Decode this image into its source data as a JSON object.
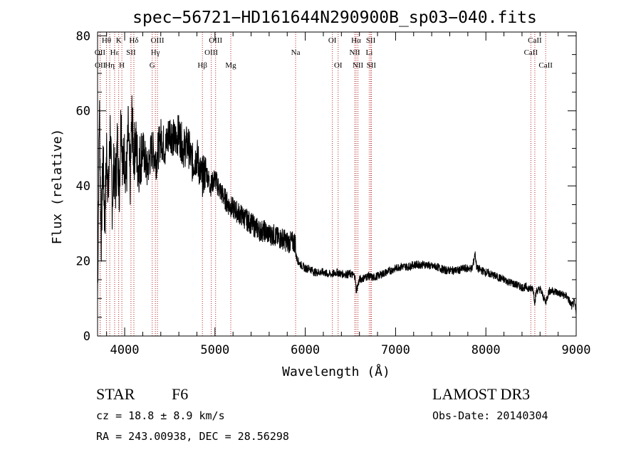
{
  "chart_data": {
    "type": "line",
    "title": "spec−56721−HD161644N290900B_sp03−040.fits",
    "xlabel": "Wavelength (Å)",
    "ylabel": "Flux (relative)",
    "xlim": [
      3700,
      9000
    ],
    "ylim": [
      0,
      81
    ],
    "x_ticks": [
      4000,
      5000,
      6000,
      7000,
      8000,
      9000
    ],
    "y_ticks": [
      0,
      20,
      40,
      60,
      80
    ],
    "grid": false,
    "series": [
      {
        "name": "flux",
        "color": "#000000",
        "x": [
          3700,
          3720,
          3740,
          3760,
          3780,
          3800,
          3820,
          3840,
          3860,
          3880,
          3900,
          3920,
          3940,
          3960,
          3980,
          4000,
          4020,
          4040,
          4060,
          4080,
          4100,
          4120,
          4150,
          4200,
          4250,
          4300,
          4350,
          4400,
          4450,
          4500,
          4550,
          4600,
          4650,
          4700,
          4750,
          4800,
          4850,
          4900,
          4950,
          5000,
          5050,
          5100,
          5150,
          5200,
          5250,
          5300,
          5350,
          5400,
          5450,
          5500,
          5550,
          5600,
          5650,
          5700,
          5750,
          5800,
          5850,
          5890,
          5900,
          5920,
          5950,
          6000,
          6050,
          6100,
          6150,
          6200,
          6250,
          6300,
          6350,
          6400,
          6450,
          6500,
          6550,
          6563,
          6600,
          6650,
          6700,
          6750,
          6800,
          6850,
          6900,
          6950,
          7000,
          7050,
          7100,
          7150,
          7200,
          7250,
          7300,
          7350,
          7400,
          7450,
          7500,
          7550,
          7600,
          7650,
          7700,
          7750,
          7800,
          7850,
          7880,
          7900,
          7950,
          8000,
          8050,
          8100,
          8150,
          8200,
          8250,
          8300,
          8350,
          8400,
          8450,
          8500,
          8520,
          8542,
          8560,
          8600,
          8662,
          8700,
          8750,
          8800,
          8850,
          8900,
          8950,
          8980,
          9000
        ],
        "values": [
          10,
          62,
          25,
          48,
          30,
          50,
          38,
          55,
          35,
          45,
          40,
          52,
          38,
          60,
          45,
          48,
          42,
          55,
          40,
          58,
          48,
          52,
          45,
          50,
          44,
          50,
          47,
          53,
          50,
          55,
          52,
          54,
          50,
          51,
          46,
          48,
          42,
          44,
          40,
          42,
          39,
          37,
          35,
          34,
          33,
          32,
          31,
          30,
          29,
          28,
          28,
          27,
          27,
          26,
          26,
          25,
          25,
          25,
          21,
          20,
          19,
          18,
          18,
          17,
          17,
          17,
          16.5,
          16.5,
          17,
          16.5,
          16.5,
          16.5,
          16,
          12,
          15,
          15.5,
          16,
          15.5,
          16,
          16.5,
          17,
          17.5,
          18,
          18.5,
          18.5,
          18.5,
          19,
          19,
          19,
          19,
          18.5,
          18.5,
          18,
          17.5,
          17.5,
          17.5,
          17.5,
          18,
          18,
          18,
          22,
          18,
          17.5,
          17,
          16.5,
          16,
          15.5,
          15,
          14.5,
          14,
          13.5,
          13,
          13,
          12.5,
          13,
          9,
          12,
          12.5,
          9,
          12,
          12,
          11.5,
          11,
          10.5,
          8,
          9,
          6
        ]
      }
    ],
    "line_markers": [
      {
        "label": "Hθ",
        "wavelength": 3798,
        "row": 0
      },
      {
        "label": "OII",
        "wavelength": 3727,
        "row": 1
      },
      {
        "label": "OII",
        "wavelength": 3729,
        "row": 2
      },
      {
        "label": "Hη",
        "wavelength": 3835,
        "row": 2
      },
      {
        "label": "Hε",
        "wavelength": 3889,
        "row": 1
      },
      {
        "label": "K",
        "wavelength": 3934,
        "row": 0
      },
      {
        "label": "H",
        "wavelength": 3969,
        "row": 2
      },
      {
        "label": "SII",
        "wavelength": 4070,
        "row": 1
      },
      {
        "label": "Hδ",
        "wavelength": 4102,
        "row": 0
      },
      {
        "label": "OIII",
        "wavelength": 4363,
        "row": 0
      },
      {
        "label": "Hγ",
        "wavelength": 4340,
        "row": 1
      },
      {
        "label": "G",
        "wavelength": 4305,
        "row": 2
      },
      {
        "label": "Hβ",
        "wavelength": 4861,
        "row": 2
      },
      {
        "label": "OIII",
        "wavelength": 5007,
        "row": 0
      },
      {
        "label": "OIII",
        "wavelength": 4959,
        "row": 1
      },
      {
        "label": "Mg",
        "wavelength": 5175,
        "row": 2
      },
      {
        "label": "Na",
        "wavelength": 5893,
        "row": 1
      },
      {
        "label": "OI",
        "wavelength": 6300,
        "row": 0
      },
      {
        "label": "OI",
        "wavelength": 6364,
        "row": 2
      },
      {
        "label": "Hα",
        "wavelength": 6563,
        "row": 0
      },
      {
        "label": "SII",
        "wavelength": 6725,
        "row": 0
      },
      {
        "label": "NII",
        "wavelength": 6548,
        "row": 1
      },
      {
        "label": "Li",
        "wavelength": 6708,
        "row": 1
      },
      {
        "label": "NII",
        "wavelength": 6583,
        "row": 2
      },
      {
        "label": "SII",
        "wavelength": 6731,
        "row": 2
      },
      {
        "label": "CaII",
        "wavelength": 8542,
        "row": 0
      },
      {
        "label": "CaII",
        "wavelength": 8498,
        "row": 1
      },
      {
        "label": "CaII",
        "wavelength": 8662,
        "row": 2
      }
    ]
  },
  "info": {
    "object_class": "STAR",
    "subclass": "F6",
    "survey": "LAMOST DR3",
    "redshift": "cz = 18.8 ± 8.9 km/s",
    "obs_date": "Obs-Date: 20140304",
    "coords": "RA = 243.00938, DEC =  28.56298"
  },
  "colors": {
    "line_marker": "#b22222",
    "spectrum": "#000000"
  }
}
